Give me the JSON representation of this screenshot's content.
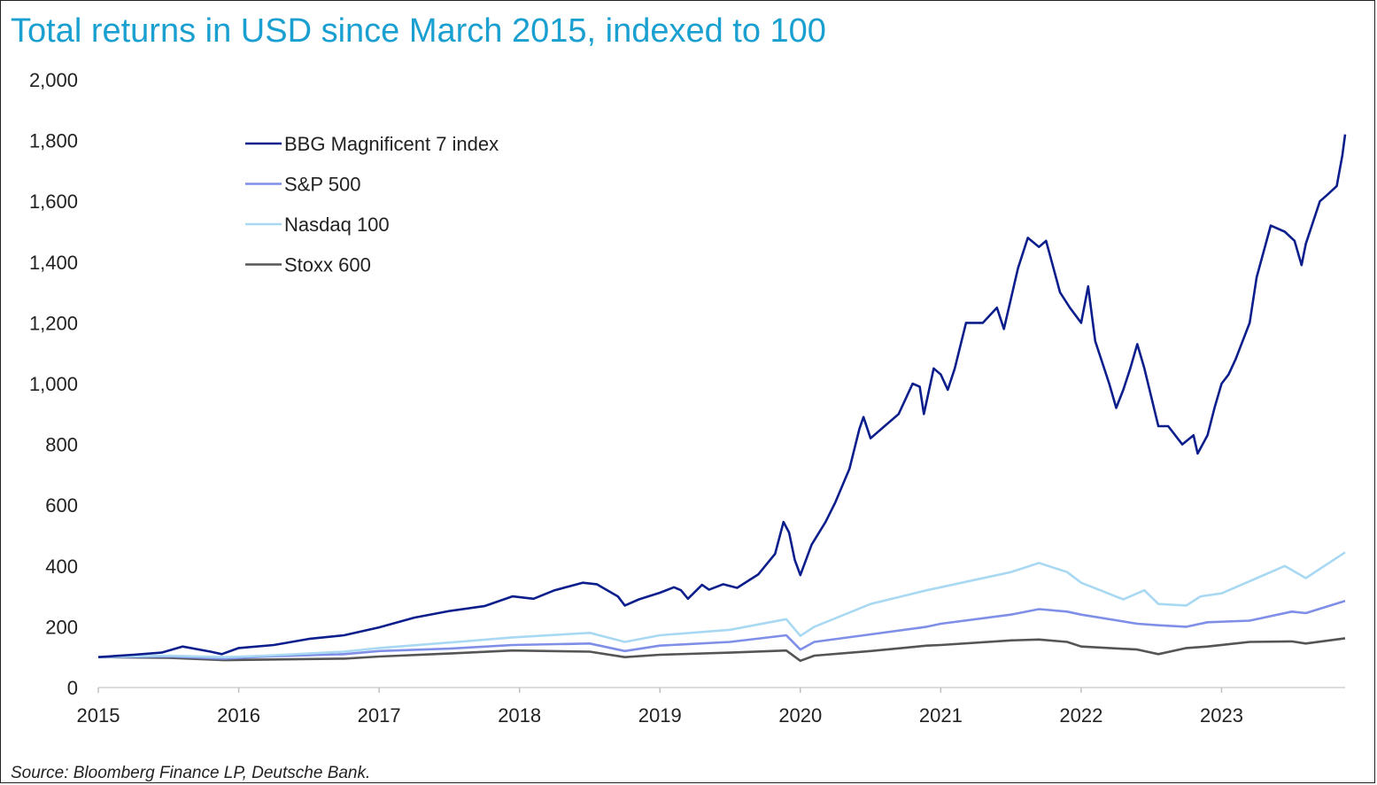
{
  "title": "Total returns in USD since March 2015, indexed to 100",
  "source": "Source: Bloomberg Finance LP, Deutsche Bank.",
  "chart_data": {
    "type": "line",
    "title": "Total returns in USD since March 2015, indexed to 100",
    "xlabel": "",
    "ylabel": "",
    "xlim": [
      2015.0,
      2023.88
    ],
    "ylim": [
      0,
      2000
    ],
    "x_ticks": [
      "2015",
      "2016",
      "2017",
      "2018",
      "2019",
      "2020",
      "2021",
      "2022",
      "2023"
    ],
    "y_ticks": [
      "0",
      "200",
      "400",
      "600",
      "800",
      "1,000",
      "1,200",
      "1,400",
      "1,600",
      "1,800",
      "2,000"
    ],
    "y_tick_values": [
      0,
      200,
      400,
      600,
      800,
      1000,
      1200,
      1400,
      1600,
      1800,
      2000
    ],
    "grid": false,
    "legend_position": "top-left",
    "series": [
      {
        "name": "BBG Magnificent 7 index",
        "color": "#0c1e8c",
        "points": [
          [
            2015.0,
            100
          ],
          [
            2015.25,
            108
          ],
          [
            2015.45,
            115
          ],
          [
            2015.6,
            135
          ],
          [
            2015.8,
            118
          ],
          [
            2015.88,
            110
          ],
          [
            2016.0,
            130
          ],
          [
            2016.25,
            140
          ],
          [
            2016.5,
            160
          ],
          [
            2016.75,
            172
          ],
          [
            2017.0,
            198
          ],
          [
            2017.25,
            230
          ],
          [
            2017.5,
            252
          ],
          [
            2017.75,
            268
          ],
          [
            2017.95,
            300
          ],
          [
            2018.1,
            292
          ],
          [
            2018.25,
            320
          ],
          [
            2018.45,
            345
          ],
          [
            2018.55,
            340
          ],
          [
            2018.7,
            300
          ],
          [
            2018.75,
            270
          ],
          [
            2018.85,
            290
          ],
          [
            2019.0,
            312
          ],
          [
            2019.1,
            330
          ],
          [
            2019.15,
            320
          ],
          [
            2019.2,
            292
          ],
          [
            2019.3,
            338
          ],
          [
            2019.35,
            322
          ],
          [
            2019.45,
            340
          ],
          [
            2019.55,
            328
          ],
          [
            2019.7,
            372
          ],
          [
            2019.82,
            440
          ],
          [
            2019.88,
            545
          ],
          [
            2019.92,
            510
          ],
          [
            2019.96,
            420
          ],
          [
            2020.0,
            370
          ],
          [
            2020.08,
            470
          ],
          [
            2020.18,
            545
          ],
          [
            2020.25,
            610
          ],
          [
            2020.35,
            720
          ],
          [
            2020.42,
            850
          ],
          [
            2020.45,
            890
          ],
          [
            2020.5,
            820
          ],
          [
            2020.6,
            860
          ],
          [
            2020.7,
            900
          ],
          [
            2020.75,
            950
          ],
          [
            2020.8,
            1000
          ],
          [
            2020.85,
            990
          ],
          [
            2020.88,
            900
          ],
          [
            2020.95,
            1050
          ],
          [
            2021.0,
            1030
          ],
          [
            2021.05,
            980
          ],
          [
            2021.1,
            1050
          ],
          [
            2021.18,
            1200
          ],
          [
            2021.3,
            1200
          ],
          [
            2021.4,
            1250
          ],
          [
            2021.45,
            1180
          ],
          [
            2021.55,
            1380
          ],
          [
            2021.62,
            1480
          ],
          [
            2021.7,
            1450
          ],
          [
            2021.75,
            1470
          ],
          [
            2021.85,
            1300
          ],
          [
            2021.92,
            1250
          ],
          [
            2022.0,
            1200
          ],
          [
            2022.05,
            1320
          ],
          [
            2022.1,
            1140
          ],
          [
            2022.2,
            1000
          ],
          [
            2022.25,
            920
          ],
          [
            2022.3,
            980
          ],
          [
            2022.35,
            1050
          ],
          [
            2022.4,
            1130
          ],
          [
            2022.45,
            1050
          ],
          [
            2022.55,
            860
          ],
          [
            2022.62,
            860
          ],
          [
            2022.72,
            800
          ],
          [
            2022.8,
            830
          ],
          [
            2022.83,
            770
          ],
          [
            2022.9,
            830
          ],
          [
            2022.95,
            920
          ],
          [
            2023.0,
            1000
          ],
          [
            2023.05,
            1030
          ],
          [
            2023.1,
            1080
          ],
          [
            2023.2,
            1200
          ],
          [
            2023.25,
            1350
          ],
          [
            2023.35,
            1520
          ],
          [
            2023.45,
            1500
          ],
          [
            2023.52,
            1470
          ],
          [
            2023.57,
            1390
          ],
          [
            2023.6,
            1460
          ],
          [
            2023.7,
            1600
          ],
          [
            2023.75,
            1620
          ],
          [
            2023.82,
            1650
          ],
          [
            2023.86,
            1750
          ],
          [
            2023.88,
            1820
          ]
        ]
      },
      {
        "name": "S&P 500",
        "color": "#7f8fe8",
        "points": [
          [
            2015.0,
            100
          ],
          [
            2015.5,
            102
          ],
          [
            2015.9,
            95
          ],
          [
            2016.2,
            102
          ],
          [
            2016.75,
            110
          ],
          [
            2017.0,
            120
          ],
          [
            2017.5,
            128
          ],
          [
            2017.95,
            140
          ],
          [
            2018.5,
            145
          ],
          [
            2018.75,
            120
          ],
          [
            2019.0,
            138
          ],
          [
            2019.5,
            150
          ],
          [
            2019.9,
            172
          ],
          [
            2020.0,
            125
          ],
          [
            2020.1,
            150
          ],
          [
            2020.5,
            175
          ],
          [
            2020.9,
            200
          ],
          [
            2021.0,
            210
          ],
          [
            2021.5,
            240
          ],
          [
            2021.7,
            258
          ],
          [
            2021.9,
            250
          ],
          [
            2022.0,
            240
          ],
          [
            2022.4,
            210
          ],
          [
            2022.55,
            205
          ],
          [
            2022.75,
            200
          ],
          [
            2022.9,
            215
          ],
          [
            2023.2,
            220
          ],
          [
            2023.5,
            250
          ],
          [
            2023.6,
            245
          ],
          [
            2023.88,
            285
          ]
        ]
      },
      {
        "name": "Nasdaq 100",
        "color": "#a9d9f2",
        "points": [
          [
            2015.0,
            100
          ],
          [
            2015.5,
            105
          ],
          [
            2015.9,
            100
          ],
          [
            2016.2,
            105
          ],
          [
            2016.75,
            118
          ],
          [
            2017.0,
            130
          ],
          [
            2017.5,
            148
          ],
          [
            2017.95,
            165
          ],
          [
            2018.5,
            180
          ],
          [
            2018.75,
            150
          ],
          [
            2019.0,
            172
          ],
          [
            2019.5,
            190
          ],
          [
            2019.9,
            225
          ],
          [
            2020.0,
            170
          ],
          [
            2020.1,
            200
          ],
          [
            2020.5,
            275
          ],
          [
            2020.9,
            320
          ],
          [
            2021.0,
            330
          ],
          [
            2021.5,
            380
          ],
          [
            2021.7,
            410
          ],
          [
            2021.9,
            380
          ],
          [
            2022.0,
            345
          ],
          [
            2022.3,
            290
          ],
          [
            2022.45,
            320
          ],
          [
            2022.55,
            275
          ],
          [
            2022.75,
            270
          ],
          [
            2022.85,
            300
          ],
          [
            2023.0,
            310
          ],
          [
            2023.2,
            350
          ],
          [
            2023.45,
            400
          ],
          [
            2023.6,
            360
          ],
          [
            2023.88,
            445
          ]
        ]
      },
      {
        "name": "Stoxx 600",
        "color": "#555555",
        "points": [
          [
            2015.0,
            100
          ],
          [
            2015.5,
            98
          ],
          [
            2015.9,
            90
          ],
          [
            2016.2,
            92
          ],
          [
            2016.75,
            95
          ],
          [
            2017.0,
            102
          ],
          [
            2017.5,
            112
          ],
          [
            2017.95,
            122
          ],
          [
            2018.5,
            118
          ],
          [
            2018.75,
            100
          ],
          [
            2019.0,
            108
          ],
          [
            2019.5,
            115
          ],
          [
            2019.9,
            122
          ],
          [
            2020.0,
            88
          ],
          [
            2020.1,
            105
          ],
          [
            2020.5,
            120
          ],
          [
            2020.9,
            138
          ],
          [
            2021.0,
            140
          ],
          [
            2021.5,
            155
          ],
          [
            2021.7,
            158
          ],
          [
            2021.9,
            150
          ],
          [
            2022.0,
            135
          ],
          [
            2022.4,
            125
          ],
          [
            2022.55,
            110
          ],
          [
            2022.75,
            130
          ],
          [
            2022.9,
            135
          ],
          [
            2023.2,
            150
          ],
          [
            2023.5,
            152
          ],
          [
            2023.6,
            145
          ],
          [
            2023.88,
            162
          ]
        ]
      }
    ]
  }
}
